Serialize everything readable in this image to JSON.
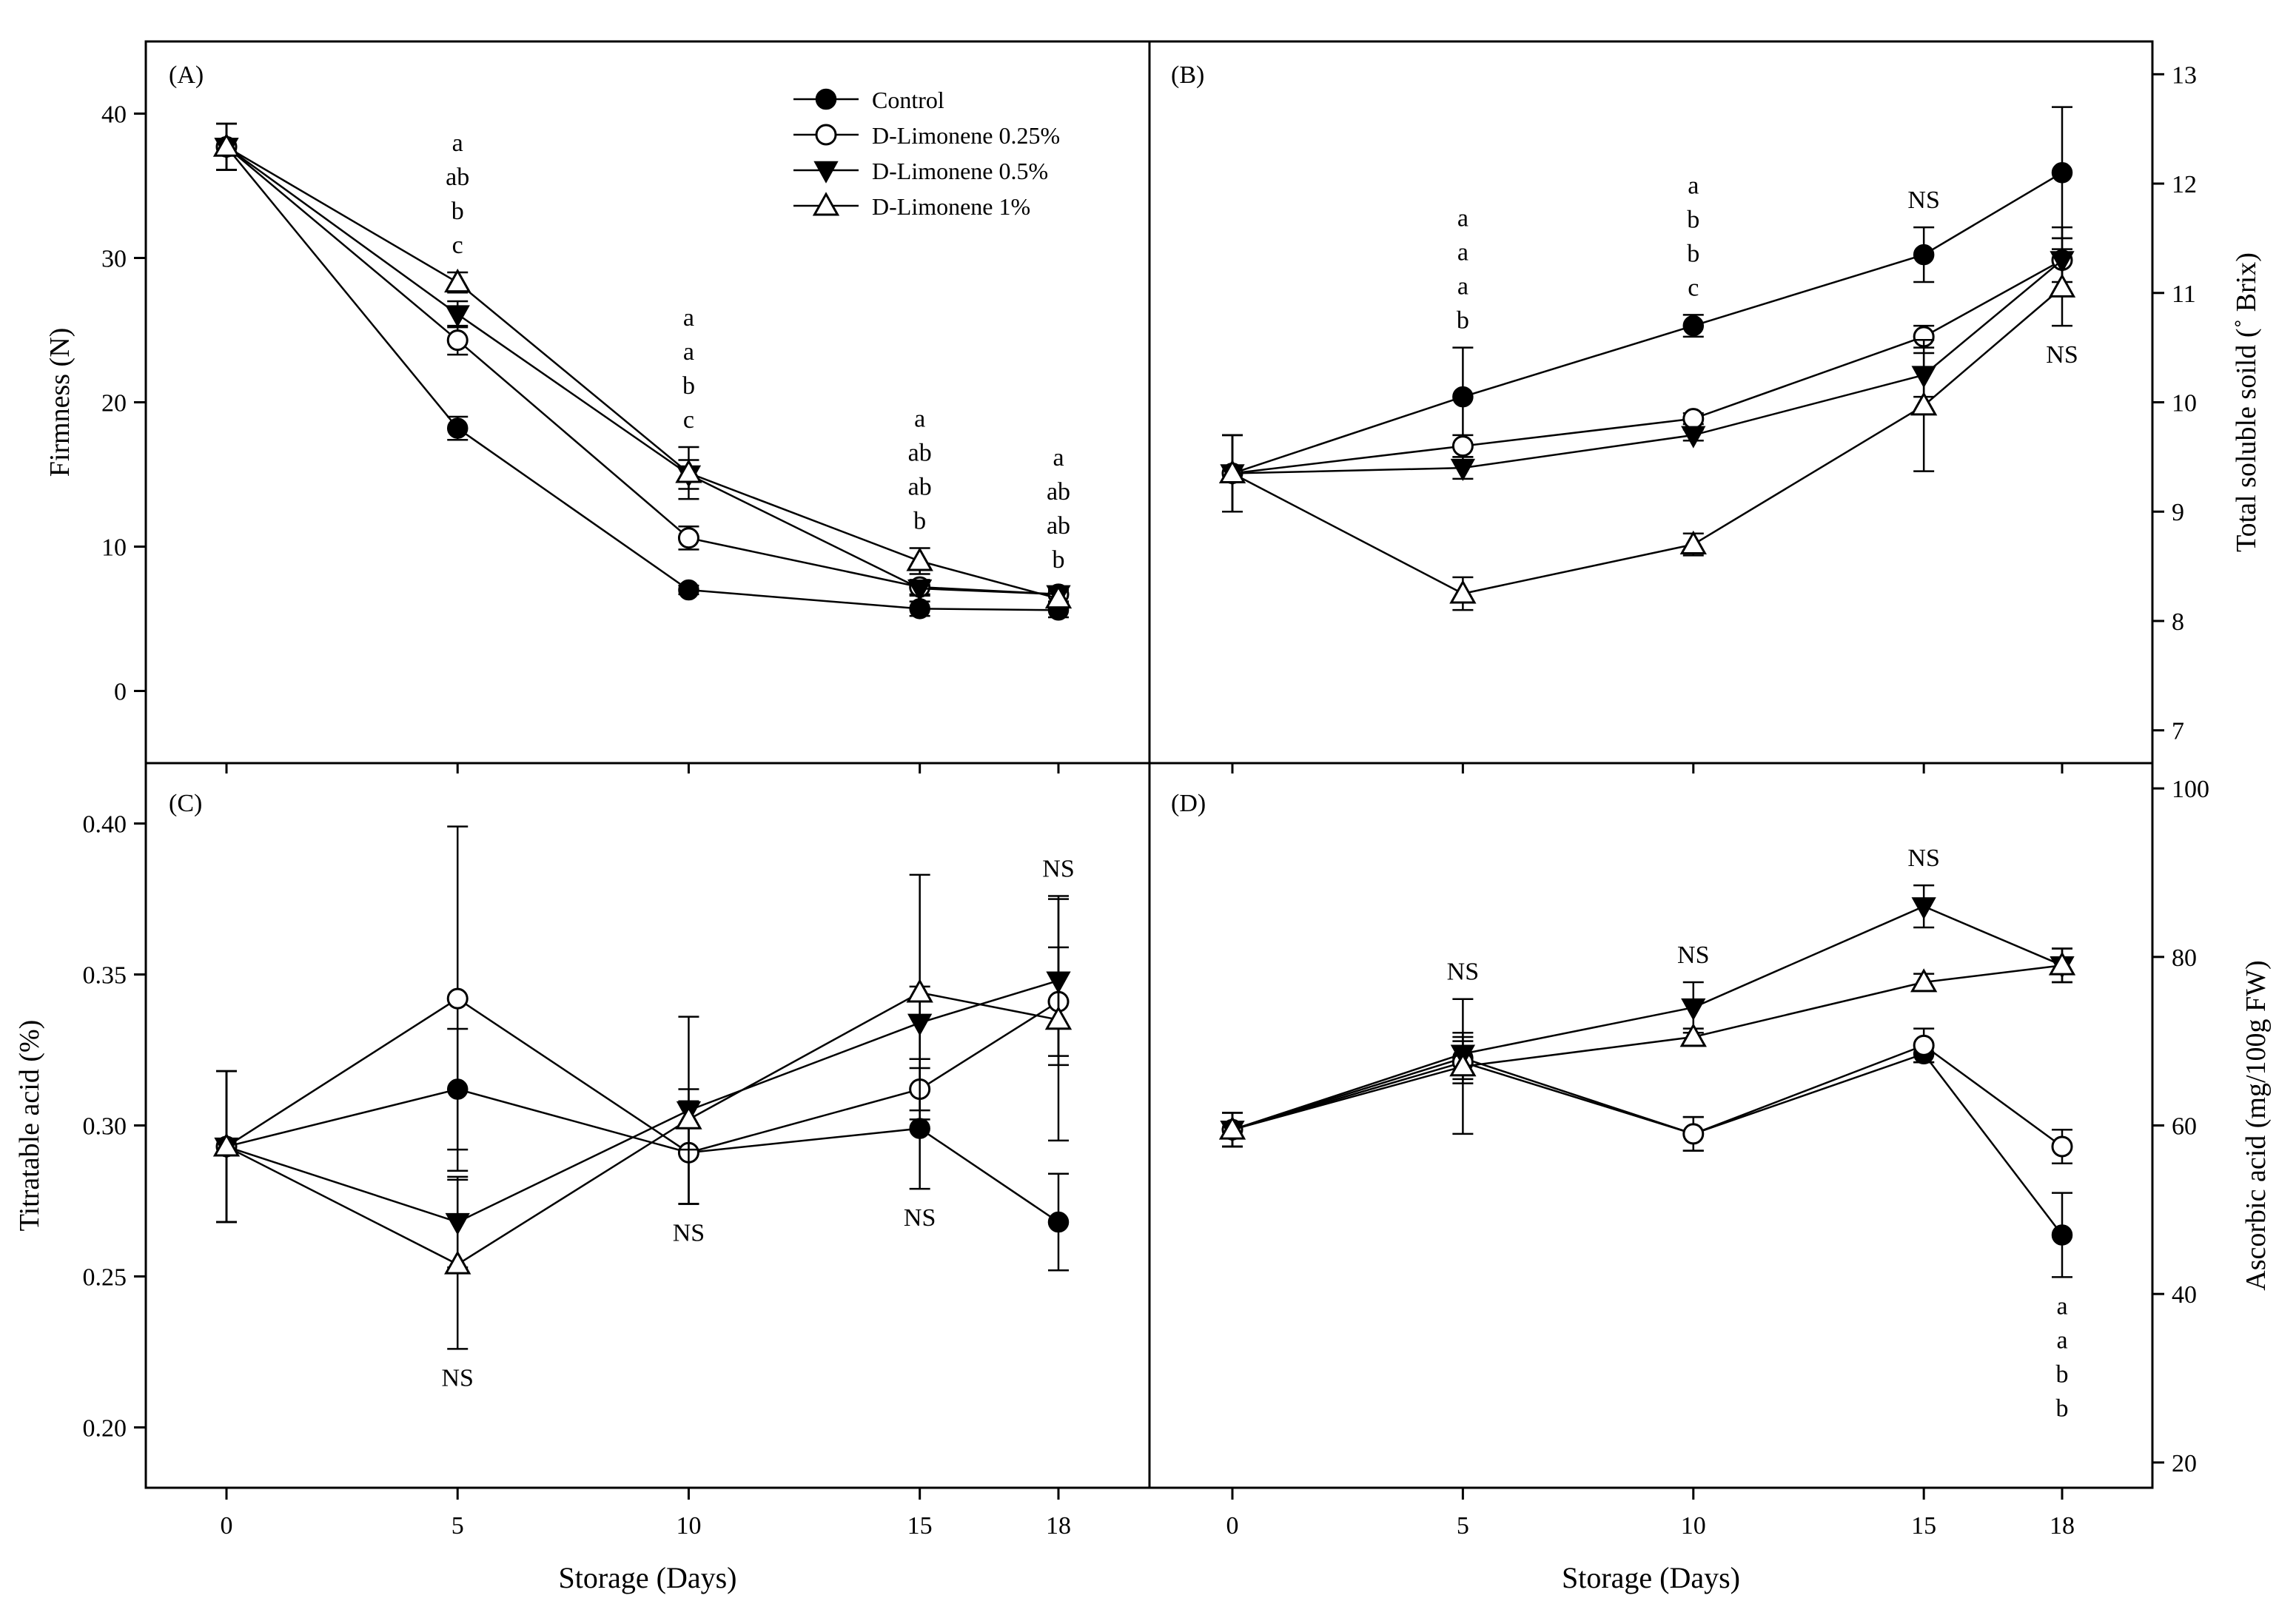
{
  "chart_data": [
    {
      "panel": "(A)",
      "type": "line",
      "x": [
        0,
        5,
        10,
        15,
        18
      ],
      "xlabel": "",
      "ylabel": "Firmness (N)",
      "ylim": [
        -5,
        45
      ],
      "yticks": [
        0,
        10,
        20,
        30,
        40
      ],
      "y_axis_side": "left",
      "legend_position": "top-right",
      "series": [
        {
          "name": "Control",
          "values": [
            37.7,
            18.2,
            7.0,
            5.7,
            5.6
          ],
          "errors": [
            1.6,
            0.8,
            0.3,
            0.5,
            0.5
          ]
        },
        {
          "name": "D-Limonene 0.25%",
          "values": [
            37.7,
            24.3,
            10.6,
            7.2,
            6.7
          ],
          "errors": [
            1.6,
            1.0,
            0.8,
            0.5,
            0.5
          ]
        },
        {
          "name": "D-Limonene 0.5%",
          "values": [
            37.7,
            26.1,
            15.0,
            7.1,
            6.7
          ],
          "errors": [
            1.6,
            0.9,
            1.0,
            0.5,
            0.5
          ]
        },
        {
          "name": "D-Limonene 1%",
          "values": [
            37.7,
            28.3,
            15.1,
            9.0,
            6.4
          ],
          "errors": [
            1.6,
            0.7,
            1.8,
            0.9,
            0.6
          ]
        }
      ],
      "annotations": [
        {
          "x": 5,
          "lines": [
            "a",
            "ab",
            "b",
            "c"
          ],
          "position": "above"
        },
        {
          "x": 10,
          "lines": [
            "a",
            "a",
            "b",
            "c"
          ],
          "position": "above"
        },
        {
          "x": 15,
          "lines": [
            "a",
            "ab",
            "ab",
            "b"
          ],
          "position": "above"
        },
        {
          "x": 18,
          "lines": [
            "a",
            "ab",
            "ab",
            "b"
          ],
          "position": "above"
        }
      ]
    },
    {
      "panel": "(B)",
      "type": "line",
      "x": [
        0,
        5,
        10,
        15,
        18
      ],
      "xlabel": "",
      "ylabel": "Total soluble soild (˚ Brix)",
      "ylim": [
        6.7,
        13.3
      ],
      "yticks": [
        7,
        8,
        9,
        10,
        11,
        12,
        13
      ],
      "y_axis_side": "right",
      "series": [
        {
          "name": "Control",
          "values": [
            9.35,
            10.05,
            10.7,
            11.35,
            12.1
          ],
          "errors": [
            0.35,
            0.45,
            0.1,
            0.25,
            0.6
          ]
        },
        {
          "name": "D-Limonene 0.25%",
          "values": [
            9.35,
            9.6,
            9.85,
            10.6,
            11.3
          ],
          "errors": [
            0.35,
            0.1,
            0.05,
            0.1,
            0.3
          ]
        },
        {
          "name": "D-Limonene 0.5%",
          "values": [
            9.35,
            9.4,
            9.7,
            10.25,
            11.3
          ],
          "errors": [
            0.35,
            0.1,
            0.05,
            0.2,
            0.2
          ]
        },
        {
          "name": "D-Limonene 1%",
          "values": [
            9.35,
            8.25,
            8.7,
            9.97,
            11.05
          ],
          "errors": [
            0.35,
            0.15,
            0.1,
            0.6,
            0.35
          ]
        }
      ],
      "annotations": [
        {
          "x": 5,
          "lines": [
            "a",
            "a",
            "a",
            "b"
          ],
          "position": "above"
        },
        {
          "x": 10,
          "lines": [
            "a",
            "b",
            "b",
            "c"
          ],
          "position": "above"
        },
        {
          "x": 15,
          "lines": [
            "NS"
          ],
          "position": "above"
        },
        {
          "x": 18,
          "lines": [
            "NS"
          ],
          "position": "below"
        }
      ]
    },
    {
      "panel": "(C)",
      "type": "line",
      "x": [
        0,
        5,
        10,
        15,
        18
      ],
      "xlabel": "Storage (Days)",
      "ylabel": "Titratable acid (%)",
      "ylim": [
        0.18,
        0.42
      ],
      "yticks": [
        0.2,
        0.25,
        0.3,
        0.35,
        0.4
      ],
      "y_axis_side": "left",
      "series": [
        {
          "name": "Control",
          "values": [
            0.293,
            0.312,
            0.291,
            0.299,
            0.268
          ],
          "errors": [
            0.025,
            0.02,
            0.017,
            0.02,
            0.016
          ]
        },
        {
          "name": "D-Limonene 0.25%",
          "values": [
            0.293,
            0.342,
            0.291,
            0.312,
            0.341
          ],
          "errors": [
            0.025,
            0.057,
            0.017,
            0.01,
            0.018
          ]
        },
        {
          "name": "D-Limonene 0.5%",
          "values": [
            0.293,
            0.268,
            0.305,
            0.334,
            0.348
          ],
          "errors": [
            0.025,
            0.015,
            0.031,
            0.012,
            0.028
          ]
        },
        {
          "name": "D-Limonene 1%",
          "values": [
            0.293,
            0.254,
            0.302,
            0.344,
            0.335
          ],
          "errors": [
            0.025,
            0.028,
            0.01,
            0.039,
            0.04
          ]
        }
      ],
      "annotations": [
        {
          "x": 5,
          "lines": [
            "NS"
          ],
          "position": "below"
        },
        {
          "x": 10,
          "lines": [
            "NS"
          ],
          "position": "below"
        },
        {
          "x": 15,
          "lines": [
            "NS"
          ],
          "position": "below"
        },
        {
          "x": 18,
          "lines": [
            "NS"
          ],
          "position": "above"
        }
      ]
    },
    {
      "panel": "(D)",
      "type": "line",
      "x": [
        0,
        5,
        10,
        15,
        18
      ],
      "xlabel": "Storage (Days)",
      "ylabel": "Ascorbic acid (mg/100g FW)",
      "ylim": [
        17,
        103
      ],
      "yticks": [
        20,
        40,
        60,
        80,
        100
      ],
      "y_axis_side": "right",
      "series": [
        {
          "name": "Control",
          "values": [
            59.5,
            68.0,
            59.0,
            68.5,
            47.0
          ],
          "errors": [
            2.0,
            2.5,
            2.0,
            1.0,
            5.0
          ]
        },
        {
          "name": "D-Limonene 0.25%",
          "values": [
            59.5,
            67.5,
            59.0,
            69.5,
            57.5
          ],
          "errors": [
            2.0,
            2.5,
            2.0,
            2.0,
            2.0
          ]
        },
        {
          "name": "D-Limonene 0.5%",
          "values": [
            59.5,
            68.5,
            74.0,
            86.0,
            79.0
          ],
          "errors": [
            2.0,
            2.5,
            3.0,
            2.5,
            2.0
          ]
        },
        {
          "name": "D-Limonene 1%",
          "values": [
            59.5,
            67.0,
            70.5,
            77.0,
            79.0
          ],
          "errors": [
            2.0,
            8.0,
            1.0,
            1.0,
            2.0
          ]
        }
      ],
      "annotations": [
        {
          "x": 5,
          "lines": [
            "NS"
          ],
          "position": "above"
        },
        {
          "x": 10,
          "lines": [
            "NS"
          ],
          "position": "above"
        },
        {
          "x": 15,
          "lines": [
            "NS"
          ],
          "position": "above"
        },
        {
          "x": 18,
          "lines": [
            "a",
            "a",
            "b",
            "b"
          ],
          "position": "below"
        }
      ]
    }
  ],
  "legend": {
    "entries": [
      {
        "label": "Control",
        "marker": "circle-filled"
      },
      {
        "label": "D-Limonene 0.25%",
        "marker": "circle-open"
      },
      {
        "label": "D-Limonene 0.5%",
        "marker": "triangle-down-filled"
      },
      {
        "label": "D-Limonene 1%",
        "marker": "triangle-up-open"
      }
    ]
  },
  "markers": [
    "circle-filled",
    "circle-open",
    "triangle-down-filled",
    "triangle-up-open"
  ],
  "colors": {
    "ink": "#000000",
    "background": "#ffffff"
  }
}
